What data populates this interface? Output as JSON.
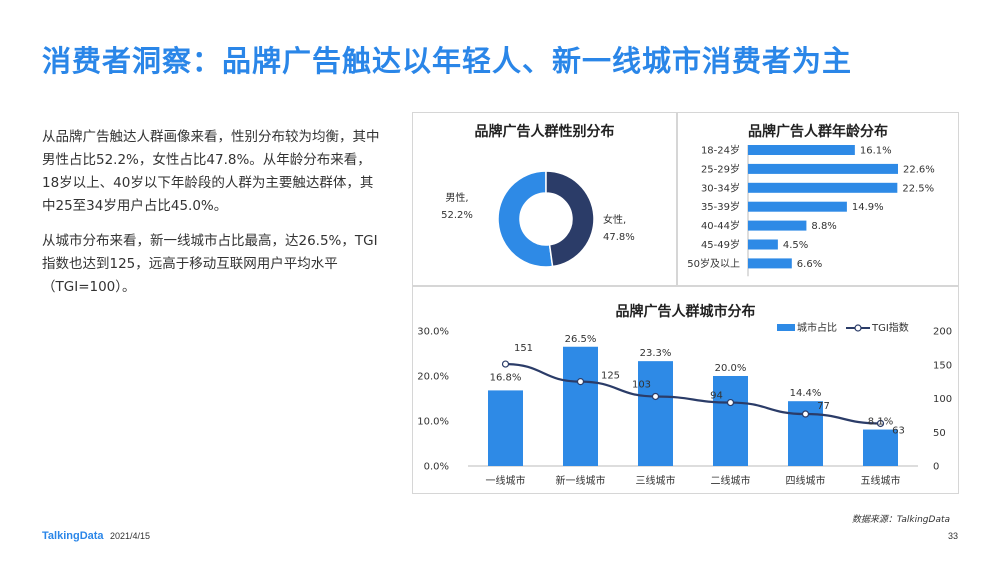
{
  "title": "消费者洞察：品牌广告触达以年轻人、新一线城市消费者为主",
  "summary": {
    "p1": "从品牌广告触达人群画像来看，性别分布较为均衡，其中男性占比52.2%，女性占比47.8%。从年龄分布来看，18岁以上、40岁以下年龄段的人群为主要触达群体，其中25至34岁用户占比45.0%。",
    "p2": "从城市分布来看，新一线城市占比最高，达26.5%，TGI指数也达到125，远高于移动互联网用户平均水平（TGI=100）。"
  },
  "footer": {
    "logo": "TalkingData",
    "date": "2021/4/15",
    "page": "33",
    "source": "数据来源：TalkingData"
  },
  "colors": {
    "accent": "#2a86e8",
    "bar": "#2e8ae6",
    "male": "#2e8ae6",
    "female": "#2b3c68",
    "line": "#2b3c68"
  },
  "chart_data": [
    {
      "type": "pie",
      "title": "品牌广告人群性别分布",
      "categories": [
        "男性",
        "女性"
      ],
      "values": [
        52.2,
        47.8
      ],
      "labels": [
        "男性,\n52.2%",
        "女性,\n47.8%"
      ]
    },
    {
      "type": "bar",
      "orientation": "horizontal",
      "title": "品牌广告人群年龄分布",
      "categories": [
        "18-24岁",
        "25-29岁",
        "30-34岁",
        "35-39岁",
        "40-44岁",
        "45-49岁",
        "50岁及以上"
      ],
      "values": [
        16.1,
        22.6,
        22.5,
        14.9,
        8.8,
        4.5,
        6.6
      ],
      "value_labels": [
        "16.1%",
        "22.6%",
        "22.5%",
        "14.9%",
        "8.8%",
        "4.5%",
        "6.6%"
      ]
    },
    {
      "type": "bar",
      "title": "品牌广告人群城市分布",
      "categories": [
        "一线城市",
        "新一线城市",
        "三线城市",
        "二线城市",
        "四线城市",
        "五线城市"
      ],
      "series": [
        {
          "name": "城市占比",
          "type": "bar",
          "axis": "left",
          "values": [
            16.8,
            26.5,
            23.3,
            20.0,
            14.4,
            8.1
          ],
          "labels": [
            "16.8%",
            "26.5%",
            "23.3%",
            "20.0%",
            "14.4%",
            "8.1%"
          ]
        },
        {
          "name": "TGI指数",
          "type": "line",
          "axis": "right",
          "values": [
            151,
            125,
            103,
            94,
            77,
            63
          ],
          "labels": [
            "151",
            "125",
            "103",
            "94",
            "77",
            "63"
          ]
        }
      ],
      "ylim_left": [
        0,
        30
      ],
      "yticks_left": [
        "0.0%",
        "10.0%",
        "20.0%",
        "30.0%"
      ],
      "ylim_right": [
        0,
        200
      ],
      "yticks_right": [
        "0",
        "50",
        "100",
        "150",
        "200"
      ],
      "legend_position": "top-right"
    }
  ]
}
